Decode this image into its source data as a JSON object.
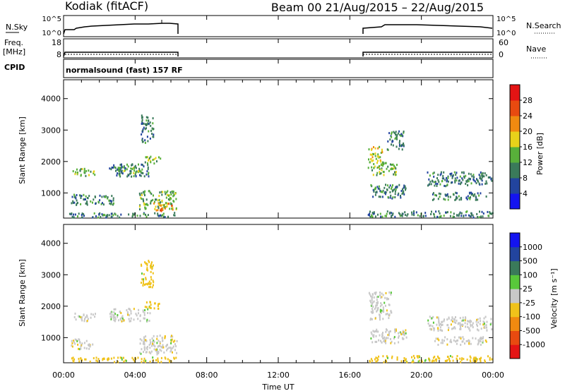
{
  "header": {
    "station": "Kodiak (fitACF)",
    "beam_info": "Beam 00 21/Aug/2015 – 22/Aug/2015"
  },
  "params": {
    "nsky_label": "N.Sky",
    "nsky_tick_top": "10^5",
    "nsky_tick_bottom": "10^0",
    "nsearch_label": "N.Search",
    "nsearch_tick_top": "10^5",
    "nsearch_tick_bottom": "10^0",
    "freq_label_1": "Freq.",
    "freq_label_2": "[MHz]",
    "freq_tick_top": "18",
    "freq_tick_bottom": "8",
    "nave_label": "Nave",
    "nave_tick_top": "60",
    "nave_tick_bottom": "0",
    "cpid_label": "CPID",
    "cpid_text": "normalsound (fast) 157 RF"
  },
  "colors": {
    "power": [
      "#1414f0",
      "#22449e",
      "#3a7a5a",
      "#58b03a",
      "#e8d21a",
      "#f08a10",
      "#e84a10",
      "#e41414"
    ],
    "velocity": [
      "#e41414",
      "#e84a10",
      "#f08a10",
      "#f0c21a",
      "#c8c8c8",
      "#58c83a",
      "#3a7a5a",
      "#22449e",
      "#1414f0"
    ]
  },
  "chart_data": [
    {
      "type": "heatmap",
      "panel": "power",
      "ylabel": "Slant Range [km]",
      "ylim": [
        200,
        4600
      ],
      "yticks": [
        "1000",
        "2000",
        "3000",
        "4000"
      ],
      "xlim_hours": [
        0,
        24
      ],
      "colorbar_label": "Power [dB]",
      "colorbar_ticks": [
        "4",
        "8",
        "12",
        "16",
        "20",
        "24",
        "28"
      ],
      "colorbar_range": [
        0,
        32
      ],
      "echo_regions": [
        {
          "t0": 0.3,
          "t1": 6.3,
          "r0": 250,
          "r1": 400,
          "value": 8
        },
        {
          "t0": 0.5,
          "t1": 1.8,
          "r0": 1550,
          "r1": 1800,
          "value": 12
        },
        {
          "t0": 2.5,
          "t1": 4.8,
          "r0": 1550,
          "r1": 1950,
          "value": 10
        },
        {
          "t0": 3.0,
          "t1": 4.5,
          "r0": 1650,
          "r1": 1850,
          "value": 14
        },
        {
          "t0": 4.5,
          "t1": 5.4,
          "r0": 1950,
          "r1": 2200,
          "value": 12
        },
        {
          "t0": 0.4,
          "t1": 1.6,
          "r0": 650,
          "r1": 1000,
          "value": 10
        },
        {
          "t0": 1.5,
          "t1": 2.8,
          "r0": 650,
          "r1": 950,
          "value": 8
        },
        {
          "t0": 4.2,
          "t1": 6.3,
          "r0": 500,
          "r1": 1100,
          "value": 14
        },
        {
          "t0": 5.0,
          "t1": 6.1,
          "r0": 450,
          "r1": 700,
          "value": 22
        },
        {
          "t0": 4.3,
          "t1": 5.0,
          "r0": 2600,
          "r1": 3500,
          "value": 8
        },
        {
          "t0": 17.0,
          "t1": 24.0,
          "r0": 250,
          "r1": 450,
          "value": 10
        },
        {
          "t0": 17.0,
          "t1": 17.8,
          "r0": 1800,
          "r1": 2500,
          "value": 16
        },
        {
          "t0": 17.2,
          "t1": 18.6,
          "r0": 1600,
          "r1": 2000,
          "value": 12
        },
        {
          "t0": 17.1,
          "t1": 19.2,
          "r0": 850,
          "r1": 1300,
          "value": 8
        },
        {
          "t0": 20.3,
          "t1": 23.9,
          "r0": 1250,
          "r1": 1700,
          "value": 10
        },
        {
          "t0": 20.6,
          "t1": 23.6,
          "r0": 800,
          "r1": 1050,
          "value": 8
        },
        {
          "t0": 18.0,
          "t1": 19.0,
          "r0": 2400,
          "r1": 3000,
          "value": 8
        }
      ]
    },
    {
      "type": "heatmap",
      "panel": "velocity",
      "ylabel": "Slant Range [km]",
      "ylim": [
        200,
        4600
      ],
      "yticks": [
        "1000",
        "2000",
        "3000",
        "4000"
      ],
      "xlim_hours": [
        0,
        24
      ],
      "colorbar_label": "Velocity [m s⁻¹]",
      "colorbar_ticks": [
        "1000",
        "500",
        "100",
        "25",
        "-25",
        "-100",
        "-500",
        "-1000"
      ],
      "echo_regions": [
        {
          "t0": 0.3,
          "t1": 6.3,
          "r0": 250,
          "r1": 400,
          "value": -60
        },
        {
          "t0": 0.5,
          "t1": 1.8,
          "r0": 1550,
          "r1": 1800,
          "value": 0
        },
        {
          "t0": 2.5,
          "t1": 4.8,
          "r0": 1550,
          "r1": 1950,
          "value": 0
        },
        {
          "t0": 4.5,
          "t1": 5.4,
          "r0": 1950,
          "r1": 2200,
          "value": -30
        },
        {
          "t0": 0.4,
          "t1": 1.6,
          "r0": 650,
          "r1": 1000,
          "value": 0
        },
        {
          "t0": 4.2,
          "t1": 6.3,
          "r0": 500,
          "r1": 1100,
          "value": 0
        },
        {
          "t0": 5.6,
          "t1": 6.2,
          "r0": 900,
          "r1": 1100,
          "value": -80
        },
        {
          "t0": 4.3,
          "t1": 5.0,
          "r0": 2600,
          "r1": 3500,
          "value": -60
        },
        {
          "t0": 17.0,
          "t1": 24.0,
          "r0": 250,
          "r1": 450,
          "value": -60
        },
        {
          "t0": 17.0,
          "t1": 18.3,
          "r0": 1600,
          "r1": 2500,
          "value": 0
        },
        {
          "t0": 17.1,
          "t1": 19.2,
          "r0": 850,
          "r1": 1300,
          "value": 0
        },
        {
          "t0": 20.3,
          "t1": 23.9,
          "r0": 1250,
          "r1": 1700,
          "value": 0
        },
        {
          "t0": 20.6,
          "t1": 23.6,
          "r0": 800,
          "r1": 1050,
          "value": 0
        }
      ]
    }
  ],
  "xaxis": {
    "ticks": [
      "00:00",
      "04:00",
      "08:00",
      "12:00",
      "16:00",
      "20:00",
      "00:00"
    ],
    "label": "Time UT"
  }
}
